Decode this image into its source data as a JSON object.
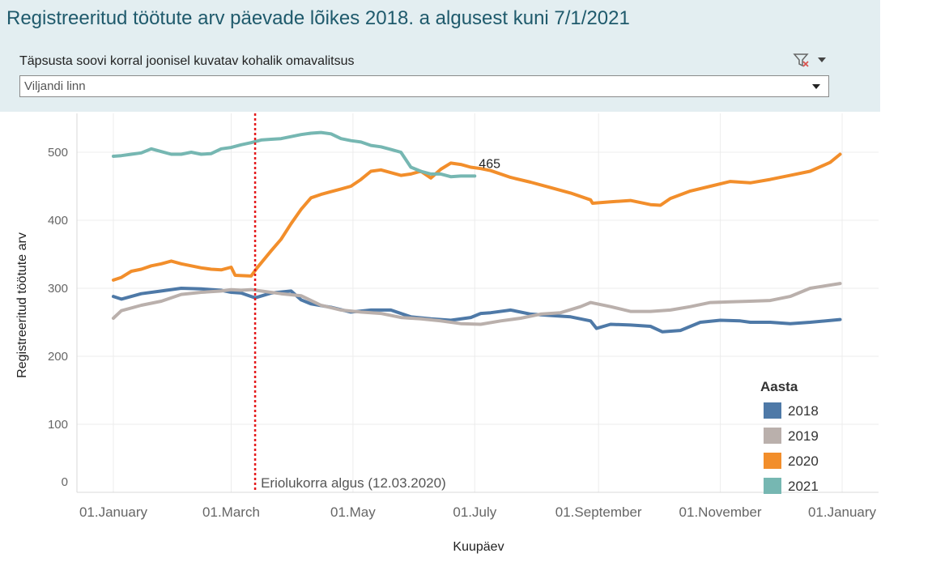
{
  "header": {
    "title": "Registreeritud töötute arv päevade lõikes 2018. a algusest kuni 7/1/2021",
    "filter_label": "Täpsusta soovi korral  joonisel kuvatav kohalik omavalitsus",
    "filter_value": "Viljandi linn",
    "clear_filter_icon": "filter-clear-icon",
    "menu_icon": "caret-down-icon"
  },
  "chart_data": {
    "type": "line",
    "xlabel": "Kuupäev",
    "ylabel": "Registreeritud töötute arv",
    "ylim": [
      0,
      550
    ],
    "xlim": [
      1,
      366
    ],
    "y_ticks": [
      0,
      100,
      200,
      300,
      400,
      500
    ],
    "x_ticks": [
      {
        "day": 1,
        "label": "01.January"
      },
      {
        "day": 60,
        "label": "01.March"
      },
      {
        "day": 121,
        "label": "01.May"
      },
      {
        "day": 182,
        "label": "01.July"
      },
      {
        "day": 244,
        "label": "01.September"
      },
      {
        "day": 305,
        "label": "01.November"
      },
      {
        "day": 366,
        "label": "01.January"
      }
    ],
    "grid": true,
    "legend_title": "Aasta",
    "legend_position": "bottom-right",
    "series": [
      {
        "name": "2018",
        "color": "#4e79a7",
        "x": [
          1,
          5,
          15,
          25,
          35,
          45,
          55,
          60,
          65,
          70,
          72,
          80,
          90,
          95,
          100,
          110,
          120,
          130,
          140,
          150,
          160,
          170,
          180,
          185,
          190,
          200,
          210,
          220,
          230,
          240,
          243,
          250,
          260,
          270,
          276,
          285,
          295,
          305,
          315,
          320,
          330,
          340,
          350,
          365
        ],
        "values": [
          288,
          284,
          292,
          296,
          300,
          299,
          297,
          294,
          293,
          288,
          286,
          293,
          296,
          283,
          277,
          272,
          265,
          268,
          268,
          258,
          255,
          253,
          257,
          263,
          264,
          268,
          262,
          260,
          258,
          252,
          241,
          247,
          246,
          244,
          236,
          238,
          250,
          253,
          252,
          250,
          250,
          248,
          250,
          254
        ]
      },
      {
        "name": "2019",
        "color": "#bab0ac",
        "x": [
          1,
          5,
          15,
          25,
          35,
          45,
          55,
          60,
          65,
          70,
          75,
          85,
          95,
          105,
          115,
          125,
          135,
          145,
          155,
          165,
          175,
          185,
          195,
          205,
          215,
          225,
          235,
          240,
          250,
          260,
          270,
          280,
          290,
          300,
          310,
          320,
          330,
          340,
          350,
          365
        ],
        "values": [
          256,
          267,
          275,
          281,
          291,
          294,
          296,
          298,
          297,
          298,
          296,
          292,
          289,
          275,
          268,
          265,
          263,
          257,
          255,
          252,
          248,
          247,
          252,
          256,
          262,
          264,
          273,
          279,
          273,
          266,
          266,
          268,
          273,
          279,
          280,
          281,
          282,
          288,
          300,
          307
        ]
      },
      {
        "name": "2020",
        "color": "#f28e2b",
        "x": [
          1,
          5,
          10,
          15,
          20,
          25,
          30,
          35,
          40,
          45,
          50,
          55,
          60,
          62,
          70,
          73,
          80,
          85,
          90,
          95,
          100,
          105,
          110,
          115,
          120,
          125,
          130,
          135,
          140,
          145,
          150,
          155,
          160,
          165,
          170,
          175,
          180,
          185,
          190,
          200,
          210,
          220,
          230,
          240,
          241,
          250,
          260,
          270,
          275,
          280,
          290,
          300,
          310,
          320,
          330,
          340,
          350,
          360,
          365
        ],
        "values": [
          312,
          316,
          325,
          328,
          333,
          336,
          340,
          336,
          333,
          330,
          328,
          327,
          331,
          319,
          318,
          330,
          355,
          372,
          395,
          416,
          433,
          438,
          442,
          446,
          450,
          460,
          472,
          474,
          470,
          466,
          468,
          472,
          462,
          475,
          484,
          482,
          478,
          476,
          473,
          463,
          456,
          448,
          440,
          430,
          425,
          427,
          429,
          423,
          422,
          432,
          443,
          450,
          457,
          455,
          460,
          466,
          472,
          485,
          497
        ]
      },
      {
        "name": "2021",
        "color": "#76b7b2",
        "x": [
          1,
          5,
          10,
          15,
          20,
          25,
          30,
          35,
          40,
          45,
          50,
          55,
          60,
          65,
          70,
          75,
          80,
          85,
          90,
          95,
          100,
          105,
          110,
          115,
          120,
          125,
          130,
          135,
          140,
          145,
          150,
          155,
          160,
          165,
          170,
          175,
          182
        ],
        "values": [
          494,
          495,
          497,
          499,
          505,
          501,
          497,
          497,
          500,
          497,
          498,
          505,
          507,
          511,
          514,
          518,
          519,
          520,
          523,
          526,
          528,
          529,
          527,
          520,
          517,
          515,
          510,
          508,
          504,
          500,
          478,
          472,
          468,
          468,
          464,
          465,
          465
        ]
      }
    ],
    "annotations": [
      {
        "type": "vline",
        "day": 72,
        "color": "#e41a1c",
        "label": "Eriolukorra algus (12.03.2020)"
      },
      {
        "type": "point-label",
        "series": "2021",
        "day": 182,
        "value": 465,
        "text": "465"
      }
    ]
  }
}
